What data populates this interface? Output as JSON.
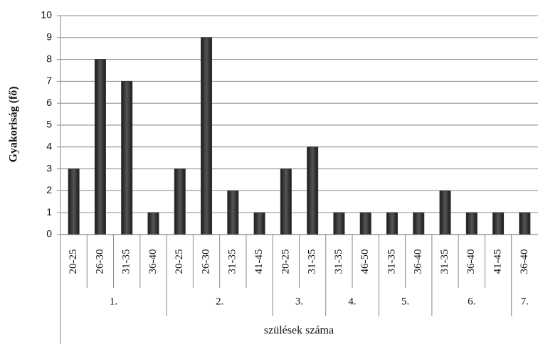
{
  "chart_data": {
    "type": "bar",
    "x_label": "szülések száma",
    "y_label": "Gyakoriság (fő)",
    "ylim": [
      0,
      10
    ],
    "yticks": [
      0,
      1,
      2,
      3,
      4,
      5,
      6,
      7,
      8,
      9,
      10
    ],
    "grid": true,
    "color": "#333333",
    "groups": [
      {
        "label": "1.",
        "categories": [
          "20-25",
          "26-30",
          "31-35",
          "36-40"
        ],
        "values": [
          3,
          8,
          7,
          1
        ]
      },
      {
        "label": "2.",
        "categories": [
          "20-25",
          "26-30",
          "31-35",
          "41-45"
        ],
        "values": [
          3,
          9,
          2,
          1
        ]
      },
      {
        "label": "3.",
        "categories": [
          "20-25",
          "31-35"
        ],
        "values": [
          3,
          4
        ]
      },
      {
        "label": "4.",
        "categories": [
          "31-35",
          "46-50"
        ],
        "values": [
          1,
          1
        ]
      },
      {
        "label": "5.",
        "categories": [
          "31-35",
          "36-40"
        ],
        "values": [
          1,
          1
        ]
      },
      {
        "label": "6.",
        "categories": [
          "31-35",
          "36-40",
          "41-45"
        ],
        "values": [
          2,
          1,
          1
        ]
      },
      {
        "label": "7.",
        "categories": [
          "36-40"
        ],
        "values": [
          1
        ]
      }
    ]
  }
}
